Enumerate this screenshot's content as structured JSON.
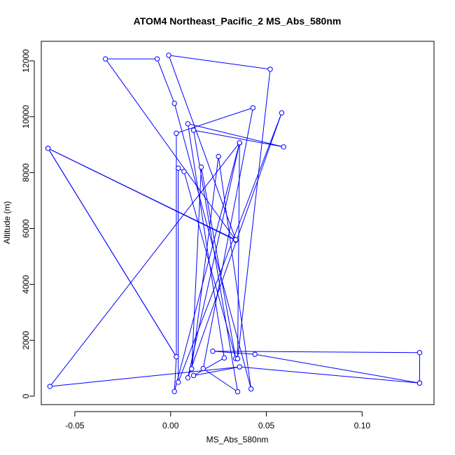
{
  "chart_data": {
    "type": "line",
    "title": "ATOM4 Northeast_Pacific_2 MS_Abs_580nm",
    "xlabel": "MS_Abs_580nm",
    "ylabel": "Altitude (m)",
    "xlim": [
      -0.0675,
      0.1375
    ],
    "ylim": [
      -300,
      12700
    ],
    "xticks": [
      -0.05,
      0.0,
      0.05,
      0.1
    ],
    "xtick_labels": [
      "-0.05",
      "0.00",
      "0.05",
      "0.10"
    ],
    "yticks": [
      0,
      2000,
      4000,
      6000,
      8000,
      10000,
      12000
    ],
    "ytick_labels": [
      "0",
      "2000",
      "4000",
      "6000",
      "8000",
      "10000",
      "12000"
    ],
    "grid": false,
    "series": [
      {
        "color": "#0000ff",
        "marker": "open-circle",
        "points": [
          {
            "x": 0.13,
            "y": 470
          },
          {
            "x": 0.13,
            "y": 1560
          },
          {
            "x": 0.022,
            "y": 1610
          },
          {
            "x": 0.044,
            "y": 1500
          },
          {
            "x": 0.13,
            "y": 470
          },
          {
            "x": 0.036,
            "y": 1050
          },
          {
            "x": 0.012,
            "y": 740
          },
          {
            "x": 0.028,
            "y": 1370
          },
          {
            "x": 0.009,
            "y": 9750
          },
          {
            "x": 0.059,
            "y": 8920
          },
          {
            "x": 0.012,
            "y": 9520
          },
          {
            "x": 0.035,
            "y": 160
          },
          {
            "x": 0.017,
            "y": 990
          },
          {
            "x": 0.043,
            "y": 10320
          },
          {
            "x": 0.003,
            "y": 9410
          },
          {
            "x": 0.003,
            "y": 1410
          },
          {
            "x": -0.064,
            "y": 8870
          },
          {
            "x": 0.034,
            "y": 5580
          },
          {
            "x": -0.034,
            "y": 12070
          },
          {
            "x": -0.007,
            "y": 12070
          },
          {
            "x": 0.002,
            "y": 10480
          },
          {
            "x": 0.042,
            "y": 260
          },
          {
            "x": 0.025,
            "y": 8580
          },
          {
            "x": 0.011,
            "y": 980
          },
          {
            "x": 0.016,
            "y": 8200
          },
          {
            "x": 0.034,
            "y": 1350
          },
          {
            "x": 0.007,
            "y": 8040
          },
          {
            "x": 0.004,
            "y": 8160
          },
          {
            "x": 0.004,
            "y": 500
          },
          {
            "x": 0.058,
            "y": 10140
          },
          {
            "x": 0.009,
            "y": 660
          },
          {
            "x": 0.036,
            "y": 9060
          },
          {
            "x": 0.035,
            "y": 1340
          },
          {
            "x": 0.052,
            "y": 11700
          },
          {
            "x": -0.001,
            "y": 12200
          },
          {
            "x": 0.034,
            "y": 5600
          },
          {
            "x": -0.064,
            "y": 8870
          },
          {
            "x": 0.003,
            "y": 1410
          },
          {
            "x": 0.002,
            "y": 170
          },
          {
            "x": 0.036,
            "y": 9070
          },
          {
            "x": -0.063,
            "y": 350
          },
          {
            "x": 0.036,
            "y": 1050
          }
        ]
      }
    ]
  }
}
